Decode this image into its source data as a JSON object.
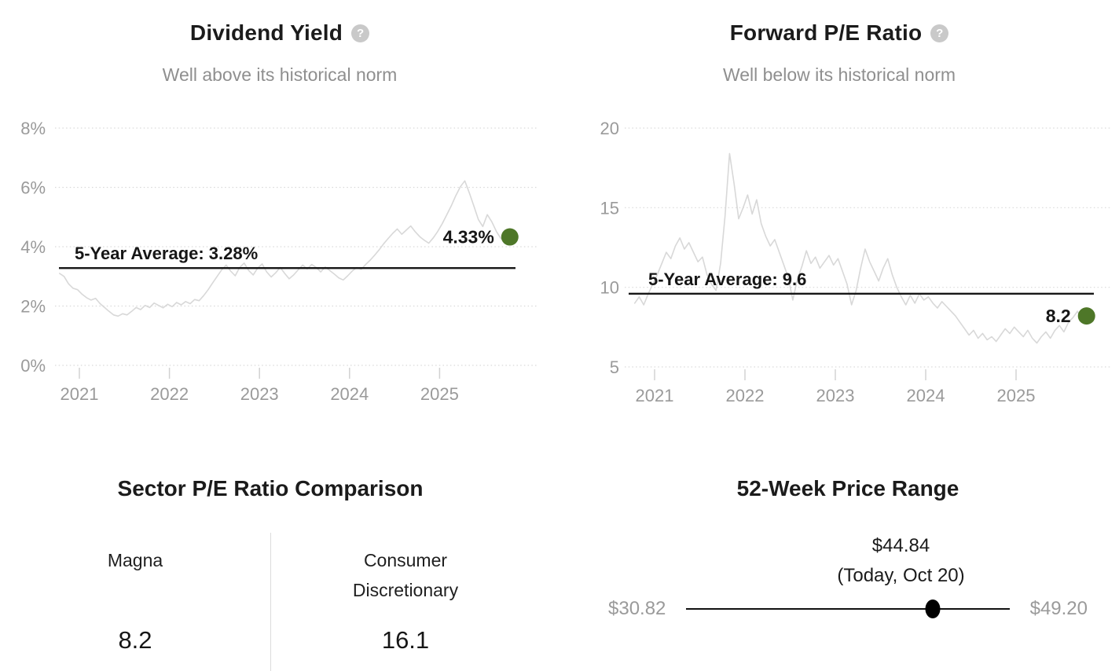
{
  "icons": {
    "help_glyph": "?"
  },
  "chart_data": [
    {
      "type": "line",
      "id": "dividend-yield",
      "title": "Dividend Yield",
      "subtitle": "Well above its historical norm",
      "average_label": "5-Year Average: 3.28%",
      "average_value": 3.28,
      "current_label": "4.33%",
      "current_value": 4.33,
      "ylim": [
        0,
        8
      ],
      "y_ticks": [
        {
          "value": 8,
          "label": "8%"
        },
        {
          "value": 6,
          "label": "6%"
        },
        {
          "value": 4,
          "label": "4%"
        },
        {
          "value": 2,
          "label": "2%"
        },
        {
          "value": 0,
          "label": "0%"
        }
      ],
      "x_ticks": [
        {
          "value": 2021,
          "label": "2021"
        },
        {
          "value": 2022,
          "label": "2022"
        },
        {
          "value": 2023,
          "label": "2023"
        },
        {
          "value": 2024,
          "label": "2024"
        },
        {
          "value": 2025,
          "label": "2025"
        }
      ],
      "grid": "dotted-horizontal",
      "line_color": "#d8d8d8",
      "marker_color": "#4e7728",
      "series": {
        "start": 2020.78,
        "step": 0.05,
        "values": [
          3.1,
          3.0,
          2.75,
          2.6,
          2.55,
          2.4,
          2.28,
          2.2,
          2.26,
          2.08,
          1.95,
          1.82,
          1.7,
          1.66,
          1.74,
          1.7,
          1.82,
          1.95,
          1.88,
          2.02,
          1.95,
          2.1,
          2.02,
          1.94,
          2.06,
          1.98,
          2.12,
          2.04,
          2.15,
          2.08,
          2.22,
          2.18,
          2.35,
          2.55,
          2.78,
          3.0,
          3.22,
          3.38,
          3.18,
          3.02,
          3.3,
          3.45,
          3.2,
          3.05,
          3.28,
          3.42,
          3.15,
          2.98,
          3.12,
          3.3,
          3.1,
          2.92,
          3.05,
          3.22,
          3.38,
          3.25,
          3.4,
          3.3,
          3.15,
          3.32,
          3.2,
          3.08,
          2.95,
          2.88,
          3.02,
          3.18,
          3.3,
          3.24,
          3.4,
          3.55,
          3.72,
          3.9,
          4.1,
          4.28,
          4.45,
          4.6,
          4.42,
          4.56,
          4.7,
          4.5,
          4.34,
          4.22,
          4.12,
          4.3,
          4.52,
          4.78,
          5.08,
          5.38,
          5.72,
          6.02,
          6.22,
          5.82,
          5.38,
          4.92,
          4.68,
          5.08,
          4.84,
          4.52,
          4.28,
          4.16,
          4.33
        ]
      }
    },
    {
      "type": "line",
      "id": "forward-pe",
      "title": "Forward P/E Ratio",
      "subtitle": "Well below its historical norm",
      "average_label": "5-Year Average: 9.6",
      "average_value": 9.6,
      "current_label": "8.2",
      "current_value": 8.2,
      "ylim": [
        5,
        20
      ],
      "y_ticks": [
        {
          "value": 20,
          "label": "20"
        },
        {
          "value": 15,
          "label": "15"
        },
        {
          "value": 10,
          "label": "10"
        },
        {
          "value": 5,
          "label": "5"
        }
      ],
      "x_ticks": [
        {
          "value": 2021,
          "label": "2021"
        },
        {
          "value": 2022,
          "label": "2022"
        },
        {
          "value": 2023,
          "label": "2023"
        },
        {
          "value": 2024,
          "label": "2024"
        },
        {
          "value": 2025,
          "label": "2025"
        }
      ],
      "grid": "dotted-horizontal",
      "line_color": "#d8d8d8",
      "marker_color": "#4e7728",
      "series": {
        "start": 2020.78,
        "step": 0.05,
        "values": [
          9.0,
          9.4,
          8.9,
          9.6,
          10.2,
          10.8,
          11.5,
          12.2,
          11.8,
          12.6,
          13.1,
          12.4,
          12.8,
          12.2,
          11.6,
          11.9,
          10.8,
          10.2,
          9.8,
          11.5,
          14.5,
          18.4,
          16.5,
          14.3,
          15.0,
          15.8,
          14.6,
          15.5,
          14.0,
          13.2,
          12.6,
          13.0,
          12.2,
          11.4,
          10.6,
          9.2,
          10.5,
          11.3,
          12.3,
          11.5,
          11.9,
          11.2,
          11.6,
          12.0,
          11.4,
          11.8,
          11.0,
          10.2,
          8.9,
          9.8,
          11.2,
          12.4,
          11.6,
          11.0,
          10.4,
          11.2,
          11.8,
          10.8,
          10.0,
          9.4,
          8.9,
          9.5,
          9.0,
          9.6,
          9.2,
          9.4,
          9.0,
          8.7,
          9.1,
          8.8,
          8.5,
          8.2,
          7.8,
          7.4,
          7.0,
          7.3,
          6.8,
          7.1,
          6.7,
          6.9,
          6.6,
          7.0,
          7.4,
          7.1,
          7.5,
          7.2,
          6.9,
          7.3,
          6.8,
          6.5,
          6.9,
          7.2,
          6.8,
          7.3,
          7.6,
          7.2,
          7.8,
          8.1,
          8.5,
          7.9,
          8.2
        ]
      }
    },
    {
      "type": "table",
      "id": "sector-pe-comparison",
      "title": "Sector P/E Ratio Comparison",
      "columns": [
        {
          "label": "Magna",
          "value": "8.2"
        },
        {
          "label": "Consumer Discretionary",
          "value": "16.1"
        }
      ]
    },
    {
      "type": "range",
      "id": "52-week-price-range",
      "title": "52-Week Price Range",
      "low": 30.82,
      "high": 49.2,
      "current": 44.84,
      "low_label": "$30.82",
      "high_label": "$49.20",
      "current_label": "$44.84",
      "date_label": "(Today, Oct 20)"
    }
  ]
}
